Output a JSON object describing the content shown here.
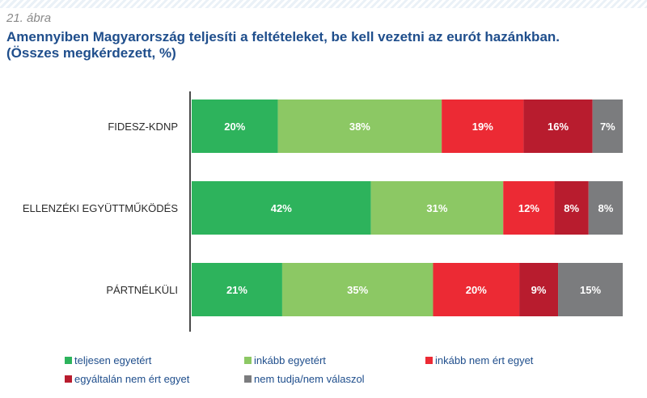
{
  "figure_label": "21. ábra",
  "title_line1": "Amennyiben Magyarország teljesíti a feltételeket, be kell vezetni az eurót hazánkban.",
  "title_line2": "(Összes megkérdezett, %)",
  "chart_data": {
    "type": "bar",
    "orientation": "horizontal",
    "stacked": true,
    "categories": [
      "FIDESZ-KDNP",
      "ELLENZÉKI EGYÜTTMŰKÖDÉS",
      "PÁRTNÉLKÜLI"
    ],
    "value_suffix": "%",
    "series": [
      {
        "name": "teljesen egyetért",
        "color": "#2db35c",
        "values": [
          20,
          42,
          21
        ]
      },
      {
        "name": "inkább egyetért",
        "color": "#8cc864",
        "values": [
          38,
          31,
          35
        ]
      },
      {
        "name": "inkább nem ért egyet",
        "color": "#ec2a34",
        "values": [
          19,
          12,
          20
        ]
      },
      {
        "name": "egyáltalán nem ért egyet",
        "color": "#b81c2e",
        "values": [
          16,
          8,
          9
        ]
      },
      {
        "name": "nem tudja/nem válaszol",
        "color": "#7b7c7e",
        "values": [
          7,
          8,
          15
        ]
      }
    ],
    "legend_position": "bottom",
    "grid": false
  }
}
